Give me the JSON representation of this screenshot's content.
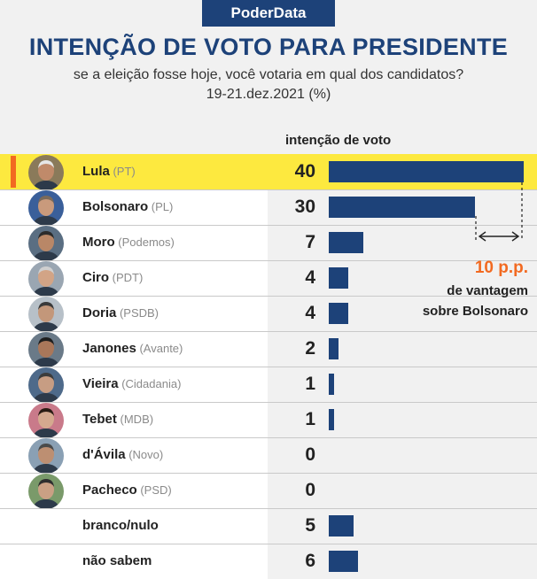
{
  "brand": "PoderData",
  "title": "INTENÇÃO DE VOTO PARA PRESIDENTE",
  "subtitle": "se a eleição fosse hoje, você votaria em qual dos candidatos?",
  "date": "19-21.dez.2021 (%)",
  "column_header": "intenção de voto",
  "annotation": {
    "value": "10 p.p.",
    "line1": "de vantagem",
    "line2": "sobre Bolsonaro"
  },
  "colors": {
    "bar": "#1d4279",
    "highlight": "#fde93f",
    "accent": "#f26a21"
  },
  "chart_data": {
    "type": "bar",
    "orientation": "horizontal",
    "categories": [
      "Lula",
      "Bolsonaro",
      "Moro",
      "Ciro",
      "Doria",
      "Janones",
      "Vieira",
      "Tebet",
      "d'Ávila",
      "Pacheco",
      "branco/nulo",
      "não sabem"
    ],
    "parties": [
      "(PT)",
      "(PL)",
      "(Podemos)",
      "(PDT)",
      "(PSDB)",
      "(Avante)",
      "(Cidadania)",
      "(MDB)",
      "(Novo)",
      "(PSD)",
      "",
      ""
    ],
    "values": [
      40,
      30,
      7,
      4,
      4,
      2,
      1,
      1,
      0,
      0,
      5,
      6
    ],
    "xlim": [
      0,
      40
    ],
    "highlighted": "Lula"
  }
}
